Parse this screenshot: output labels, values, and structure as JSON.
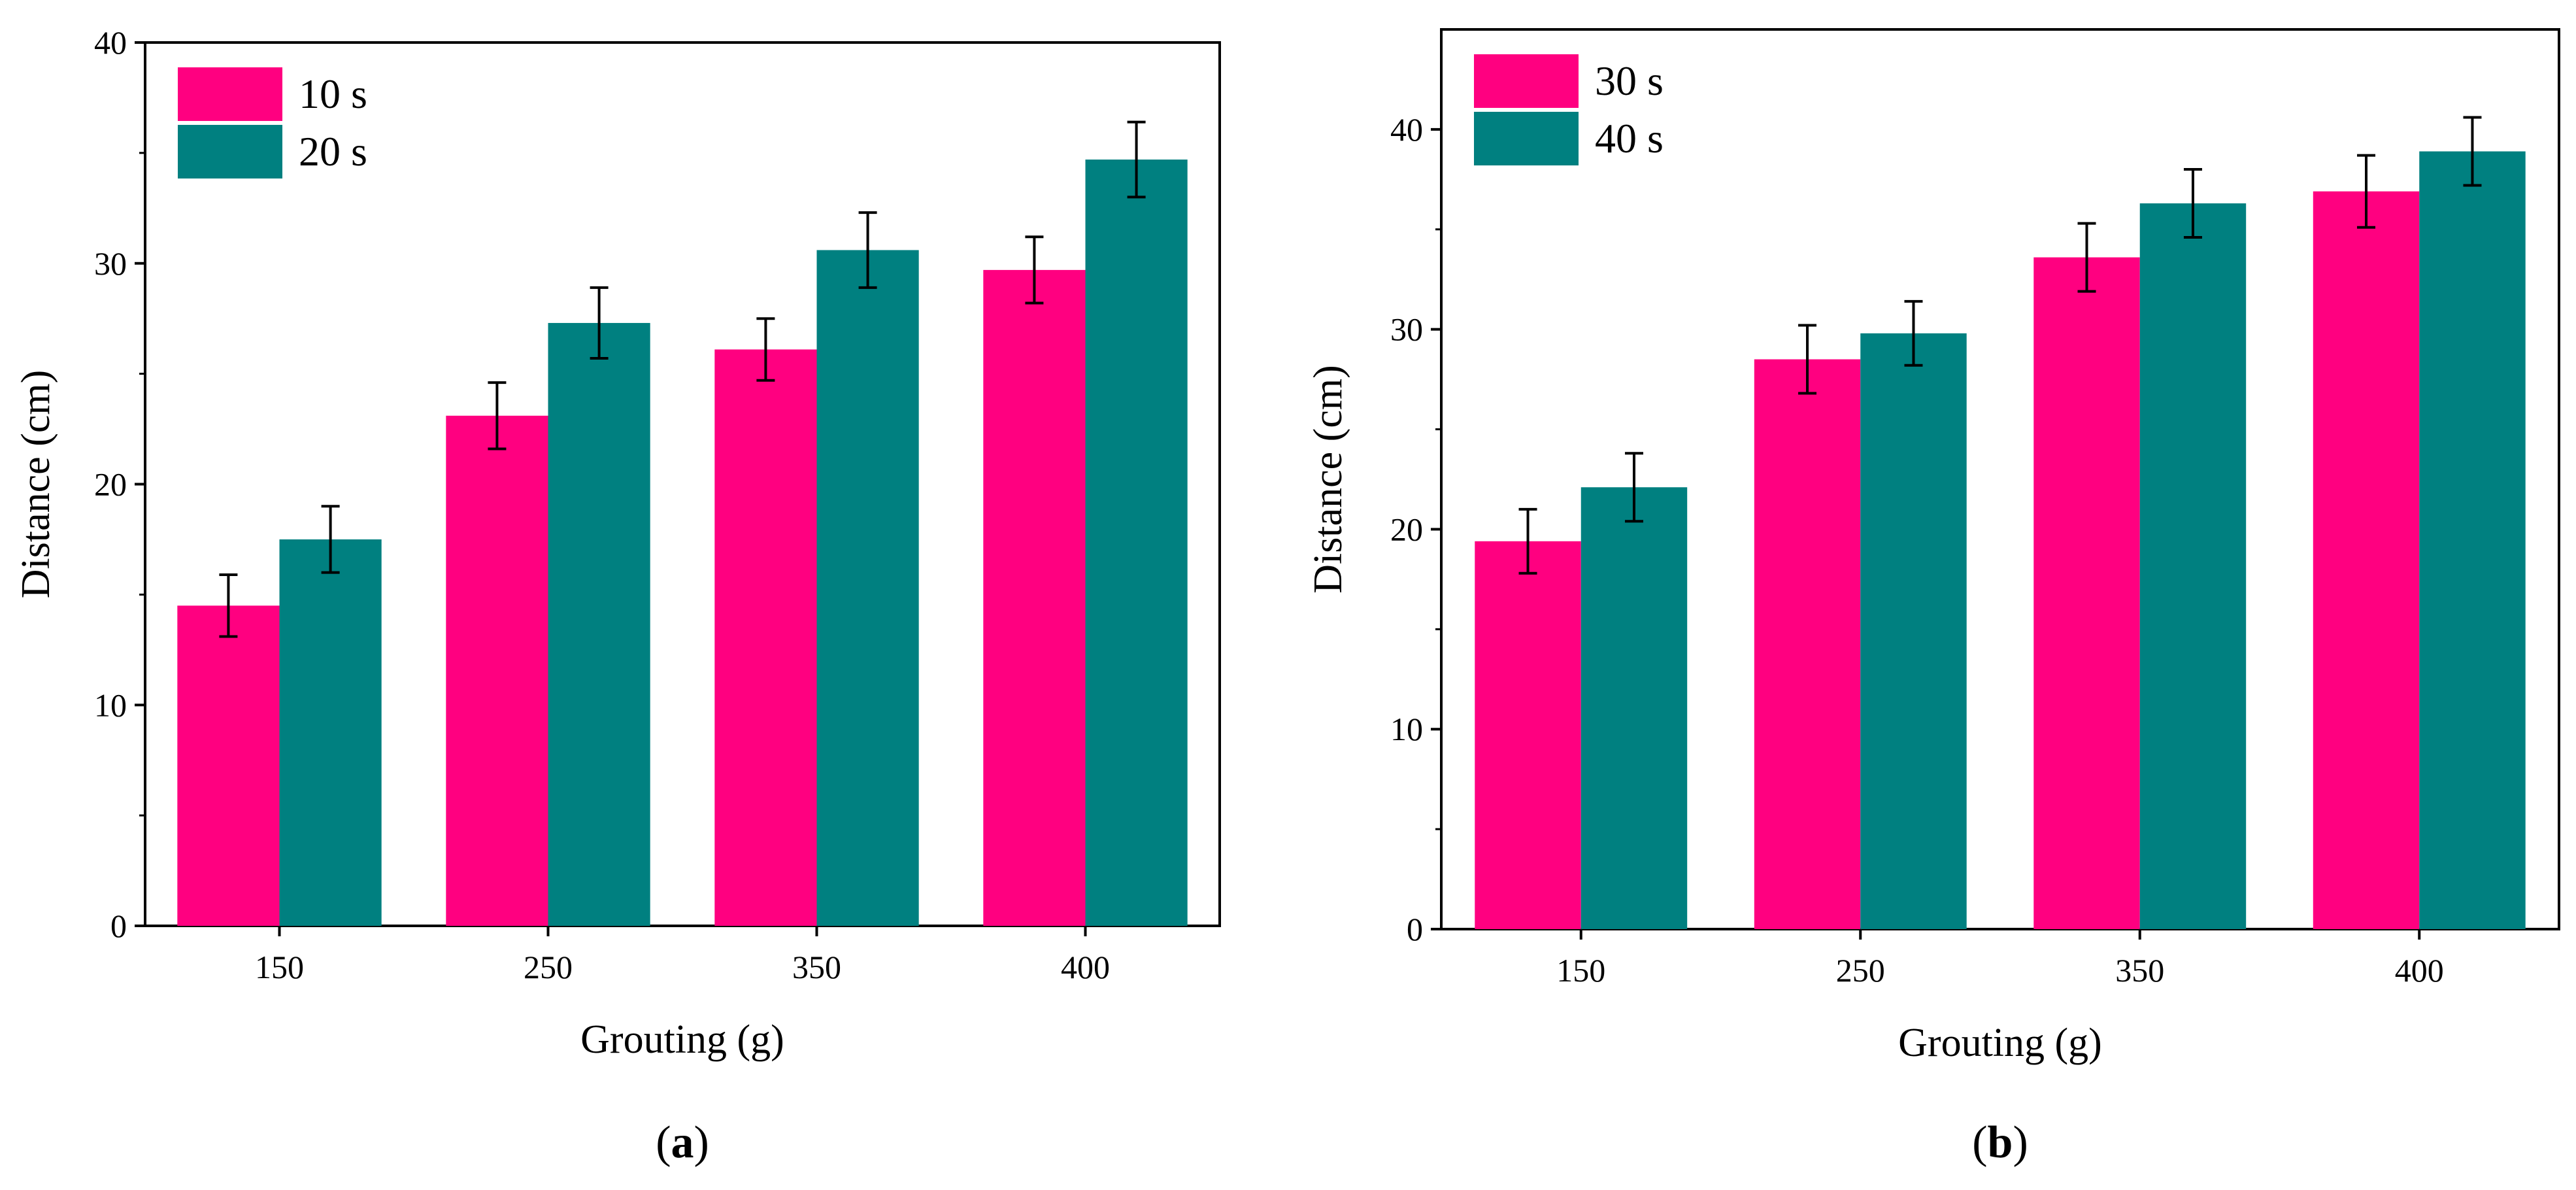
{
  "chart_data": [
    {
      "type": "bar",
      "panel_label": "a",
      "categories": [
        "150",
        "250",
        "350",
        "400"
      ],
      "series": [
        {
          "name": "10 s",
          "color": "#ff0080",
          "values": [
            14.5,
            23.1,
            26.1,
            29.7
          ],
          "errors": [
            1.4,
            1.5,
            1.4,
            1.5
          ]
        },
        {
          "name": "20 s",
          "color": "#008080",
          "values": [
            17.5,
            27.3,
            30.6,
            34.7
          ],
          "errors": [
            1.5,
            1.6,
            1.7,
            1.7
          ]
        }
      ],
      "xlabel": "Grouting (g)",
      "ylabel": "Distance (cm)",
      "ylim": [
        0,
        40
      ],
      "yticks": [
        0,
        10,
        20,
        30,
        40
      ],
      "legend_position": "top-left",
      "grid": false
    },
    {
      "type": "bar",
      "panel_label": "b",
      "categories": [
        "150",
        "250",
        "350",
        "400"
      ],
      "series": [
        {
          "name": "30 s",
          "color": "#ff0080",
          "values": [
            19.4,
            28.5,
            33.6,
            36.9
          ],
          "errors": [
            1.6,
            1.7,
            1.7,
            1.8
          ]
        },
        {
          "name": "40 s",
          "color": "#008080",
          "values": [
            22.1,
            29.8,
            36.3,
            38.9
          ],
          "errors": [
            1.7,
            1.6,
            1.7,
            1.7
          ]
        }
      ],
      "xlabel": "Grouting (g)",
      "ylabel": "Distance (cm)",
      "ylim": [
        0,
        45
      ],
      "yticks": [
        0,
        10,
        20,
        30,
        40
      ],
      "legend_position": "top-left",
      "grid": false
    }
  ]
}
